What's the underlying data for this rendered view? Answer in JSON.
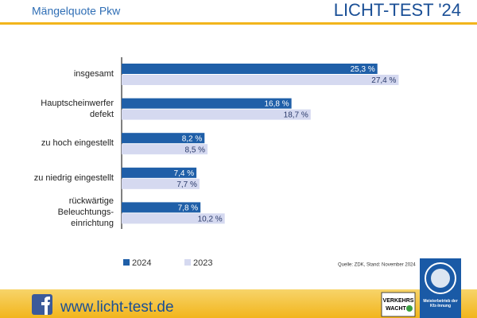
{
  "page": {
    "brand": "LICHT-TEST '24",
    "website": "www.licht-test.de",
    "partner_logo": [
      "VERKEHRS",
      "WACHT"
    ],
    "badge": "Meisterbetrieb der Kfz-Innung"
  },
  "chart_data": {
    "type": "bar",
    "orientation": "horizontal",
    "title": "Mängelquote Pkw",
    "categories": [
      "insgesamt",
      "Hauptscheinwerfer\ndefekt",
      "zu hoch eingestellt",
      "zu niedrig eingestellt",
      "rückwärtige\nBeleuchtungs-\neinrichtung"
    ],
    "series": [
      {
        "name": "2024",
        "color": "#1f5fa8",
        "values": [
          25.3,
          16.8,
          8.2,
          7.4,
          7.8
        ],
        "value_labels": [
          "25,3 %",
          "16,8 %",
          "8,2 %",
          "7,4 %",
          "7,8 %"
        ]
      },
      {
        "name": "2023",
        "color": "#d5d9f0",
        "values": [
          27.4,
          18.7,
          8.5,
          7.7,
          10.2
        ],
        "value_labels": [
          "27,4 %",
          "18,7 %",
          "8,5 %",
          "7,7 %",
          "10,2 %"
        ]
      }
    ],
    "xlim": [
      0,
      33.5
    ],
    "legend": "bottom-left",
    "source": "Quelle: ZDK, Stand: November 2024"
  }
}
